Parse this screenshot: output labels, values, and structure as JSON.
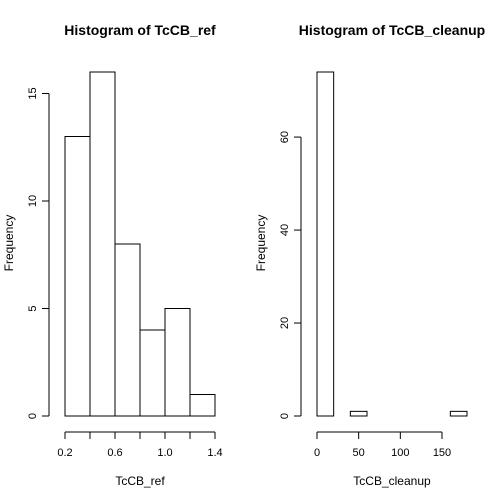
{
  "chart_data": [
    {
      "type": "bar",
      "title": "Histogram of TcCB_ref",
      "xlabel": "TcCB_ref",
      "ylabel": "Frequency",
      "bins": [
        {
          "from": 0.2,
          "to": 0.4,
          "count": 13
        },
        {
          "from": 0.4,
          "to": 0.6,
          "count": 16
        },
        {
          "from": 0.6,
          "to": 0.8,
          "count": 8
        },
        {
          "from": 0.8,
          "to": 1.0,
          "count": 4
        },
        {
          "from": 1.0,
          "to": 1.2,
          "count": 5
        },
        {
          "from": 1.2,
          "to": 1.4,
          "count": 1
        }
      ],
      "xlim": [
        0.2,
        1.4
      ],
      "ylim": [
        0,
        16
      ],
      "xticks": [
        0.2,
        0.4,
        0.6,
        0.8,
        1.0,
        1.2,
        1.4
      ],
      "xtick_labels": [
        "0.2",
        "",
        "0.6",
        "",
        "1.0",
        "",
        "1.4"
      ],
      "yticks": [
        0,
        5,
        10,
        15
      ],
      "ytick_labels": [
        "0",
        "5",
        "10",
        "15"
      ]
    },
    {
      "type": "bar",
      "title": "Histogram of TcCB_cleanup",
      "xlabel": "TcCB_cleanup",
      "ylabel": "Frequency",
      "bins": [
        {
          "from": 0,
          "to": 20,
          "count": 74
        },
        {
          "from": 20,
          "to": 40,
          "count": 0
        },
        {
          "from": 40,
          "to": 60,
          "count": 1
        },
        {
          "from": 60,
          "to": 80,
          "count": 0
        },
        {
          "from": 80,
          "to": 100,
          "count": 0
        },
        {
          "from": 100,
          "to": 120,
          "count": 0
        },
        {
          "from": 120,
          "to": 140,
          "count": 0
        },
        {
          "from": 140,
          "to": 160,
          "count": 0
        },
        {
          "from": 160,
          "to": 180,
          "count": 1
        }
      ],
      "xlim": [
        0,
        180
      ],
      "ylim": [
        0,
        74
      ],
      "xticks": [
        0,
        50,
        100,
        150
      ],
      "xtick_labels": [
        "0",
        "50",
        "100",
        "150"
      ],
      "yticks": [
        0,
        20,
        40,
        60
      ],
      "ytick_labels": [
        "0",
        "20",
        "40",
        "60"
      ]
    }
  ]
}
